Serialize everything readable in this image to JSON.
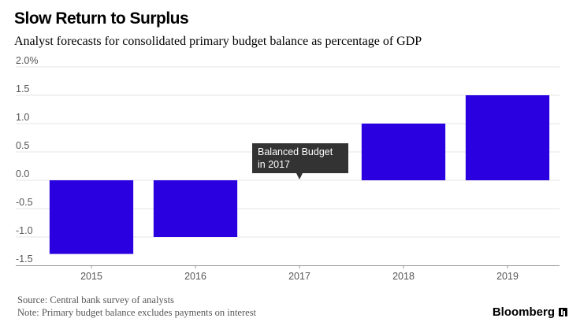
{
  "header": {
    "title": "Slow Return to Surplus",
    "subtitle": "Analyst forecasts for consolidated primary budget balance as percentage of GDP"
  },
  "chart_data": {
    "type": "bar",
    "categories": [
      "2015",
      "2016",
      "2017",
      "2018",
      "2019"
    ],
    "values": [
      -1.3,
      -1.0,
      0.0,
      1.0,
      1.5
    ],
    "ylim": [
      -1.5,
      2.0
    ],
    "yticks": [
      2.0,
      1.5,
      1.0,
      0.5,
      0.0,
      -0.5,
      -1.0,
      -1.5
    ],
    "ytick_labels": [
      "2.0%",
      "1.5",
      "1.0",
      "0.5",
      "0.0",
      "-0.5",
      "-1.0",
      "-1.5"
    ],
    "grid": true,
    "bar_color": "#2a00e0",
    "annotation": {
      "category": "2017",
      "lines": [
        "Balanced Budget",
        "in 2017"
      ],
      "color": "#333333"
    }
  },
  "footer": {
    "source": "Source: Central bank survey of analysts",
    "note": "Note: Primary budget balance excludes payments on interest"
  },
  "brand": {
    "name": "Bloomberg"
  }
}
